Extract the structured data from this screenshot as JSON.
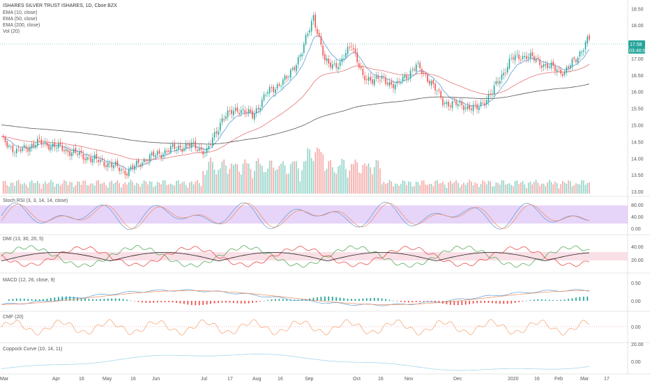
{
  "header": {
    "title": "ISHARES SILVER TRUST ISHARES, 1D, Cboe BZX",
    "indicators": [
      "EMA (10, close)",
      "EMA (50, close)",
      "EMA (200, close)",
      "Vol (20)"
    ]
  },
  "price_badge": {
    "price": "17.58",
    "countdown": "03:40:05"
  },
  "panes": {
    "stoch": {
      "label": "Stoch RSI (3, 3, 14, 14, close)",
      "ticks": [
        "80.00",
        "40.00",
        "0.00"
      ]
    },
    "dmi": {
      "label": "DMI (13, 30, 20, 5)",
      "ticks": [
        "40.00",
        "20.00"
      ]
    },
    "macd": {
      "label": "MACD (12, 26, close, 9)",
      "ticks": [
        "0.50",
        "0.00"
      ]
    },
    "cmf": {
      "label": "CMF (20)",
      "ticks": [
        "0.00"
      ]
    },
    "coppock": {
      "label": "Coppock Curve (10, 14, 11)",
      "ticks": [
        "20.00",
        "0.00"
      ]
    }
  },
  "colors": {
    "up": "#26a69a",
    "down": "#ef5350",
    "ema10": "#5b9bd5",
    "ema50": "#e57373",
    "ema200": "#555555",
    "stoch_band": "#d7b8f5",
    "dmi_band": "#f8d7e0",
    "badge": "#26a69a",
    "cmf": "#f4a06b",
    "coppock": "#9bd1ea",
    "grid_dot": "#e57373"
  },
  "chart_data": {
    "type": "candlestick",
    "title": "ISHARES SILVER TRUST ISHARES, 1D, Cboe BZX",
    "x_ticks": [
      "Mar",
      "Apr",
      "16",
      "May",
      "16",
      "Jun",
      "Jul",
      "17",
      "Aug",
      "16",
      "Sep",
      "Oct",
      "16",
      "Nov",
      "Dec",
      "2020",
      "16",
      "Feb",
      "Mar",
      "17"
    ],
    "y_ticks": [
      "18.50",
      "18.00",
      "17.50",
      "17.00",
      "16.50",
      "16.00",
      "15.50",
      "15.00",
      "14.50",
      "14.00",
      "13.50",
      "13.00"
    ],
    "ylim": [
      12.95,
      18.6
    ],
    "last_price": 17.58,
    "close_anchors": [
      [
        0,
        14.6
      ],
      [
        8,
        14.2
      ],
      [
        20,
        14.5
      ],
      [
        32,
        14.3
      ],
      [
        44,
        14.05
      ],
      [
        56,
        13.85
      ],
      [
        66,
        13.6
      ],
      [
        76,
        14.0
      ],
      [
        90,
        14.3
      ],
      [
        100,
        14.4
      ],
      [
        108,
        14.2
      ],
      [
        116,
        15.2
      ],
      [
        124,
        15.5
      ],
      [
        132,
        15.3
      ],
      [
        140,
        16.0
      ],
      [
        150,
        16.4
      ],
      [
        158,
        17.2
      ],
      [
        164,
        18.3
      ],
      [
        170,
        16.9
      ],
      [
        178,
        16.8
      ],
      [
        184,
        17.5
      ],
      [
        190,
        16.4
      ],
      [
        198,
        16.4
      ],
      [
        208,
        16.2
      ],
      [
        218,
        16.8
      ],
      [
        226,
        16.3
      ],
      [
        232,
        15.7
      ],
      [
        242,
        15.6
      ],
      [
        250,
        15.5
      ],
      [
        258,
        16.0
      ],
      [
        268,
        17.0
      ],
      [
        276,
        17.1
      ],
      [
        286,
        16.8
      ],
      [
        296,
        16.6
      ],
      [
        302,
        17.0
      ],
      [
        308,
        17.55
      ]
    ],
    "series": [
      {
        "name": "EMA (10, close)",
        "values": []
      },
      {
        "name": "EMA (50, close)",
        "values": []
      },
      {
        "name": "EMA (200, close)",
        "values": []
      }
    ]
  }
}
